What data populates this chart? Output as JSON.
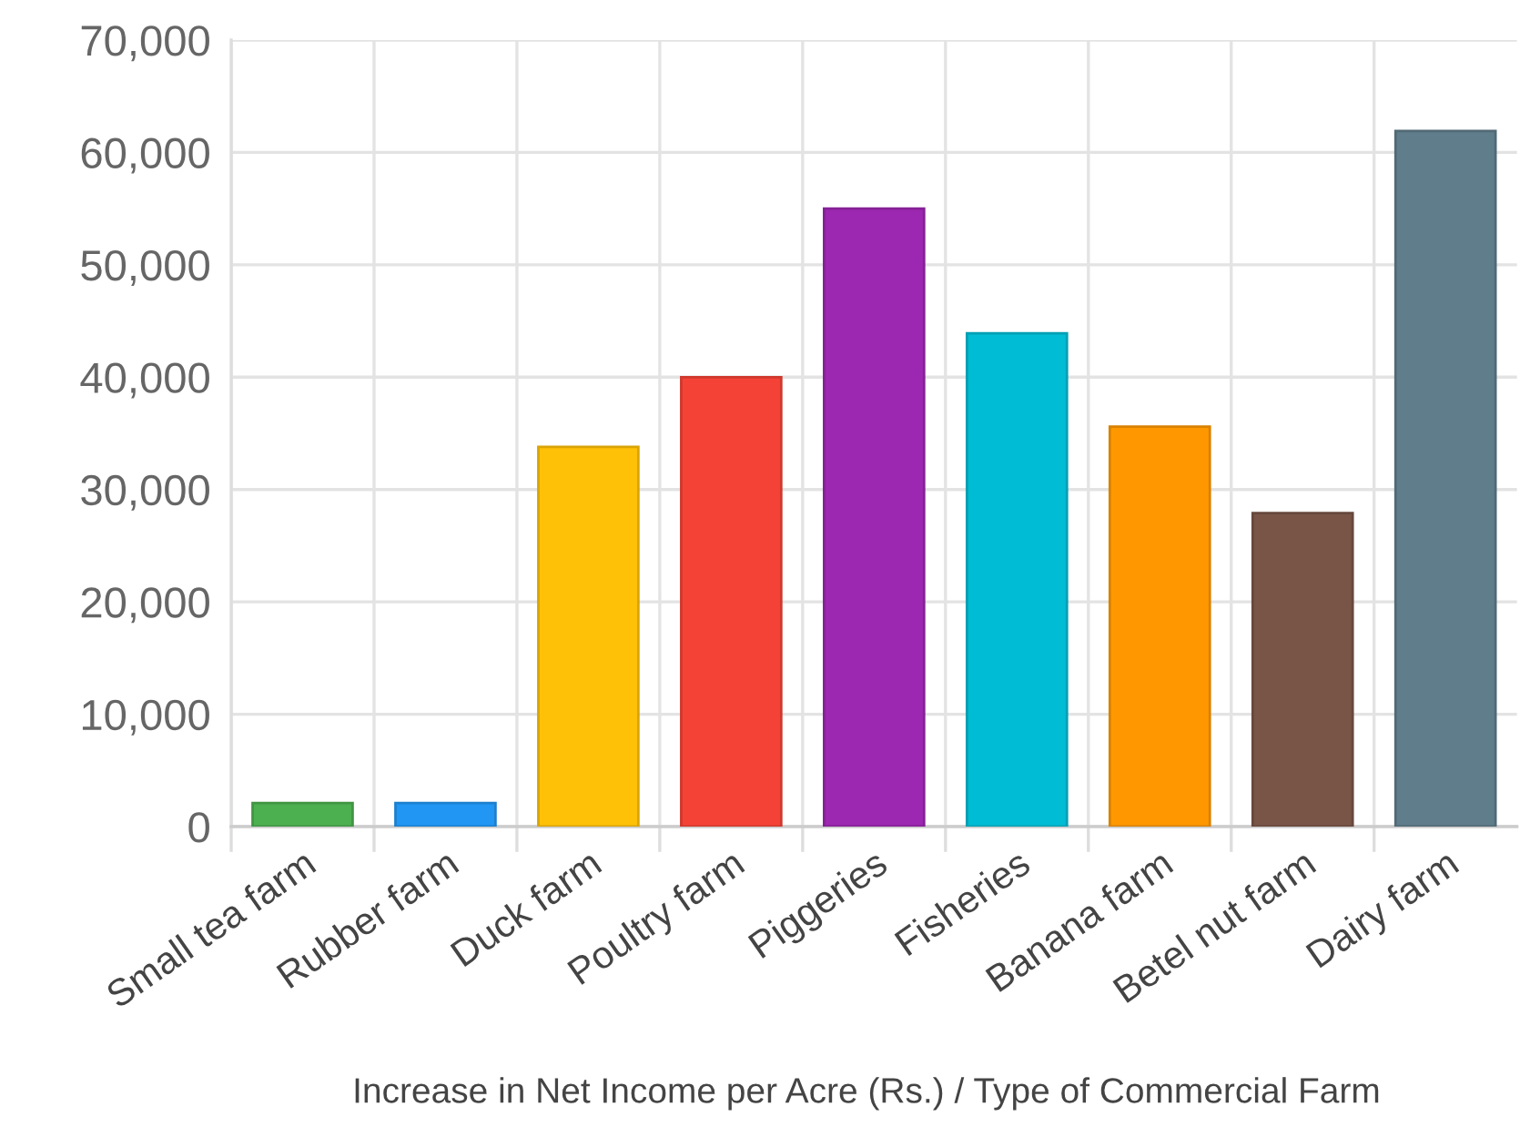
{
  "chart_data": {
    "type": "bar",
    "xlabel": "Increase in Net Income per Acre (Rs.) / Type of Commercial Farm",
    "categories": [
      "Small tea farm",
      "Rubber farm",
      "Duck farm",
      "Poultry farm",
      "Piggeries",
      "Fisheries",
      "Banana farm",
      "Betel nut farm",
      "Dairy farm"
    ],
    "values": [
      2100,
      2100,
      33800,
      40000,
      55000,
      43900,
      35600,
      27900,
      61900
    ],
    "colors": [
      "#4caf50",
      "#2196f3",
      "#ffc107",
      "#f44336",
      "#9c27b0",
      "#00bcd4",
      "#ff9800",
      "#795548",
      "#607d8b"
    ],
    "ylim": [
      0,
      70000
    ],
    "yticks": [
      {
        "value": 0,
        "label": "0"
      },
      {
        "value": 10000,
        "label": "10,000"
      },
      {
        "value": 20000,
        "label": "20,000"
      },
      {
        "value": 30000,
        "label": "30,000"
      },
      {
        "value": 40000,
        "label": "40,000"
      },
      {
        "value": 50000,
        "label": "50,000"
      },
      {
        "value": 60000,
        "label": "60,000"
      },
      {
        "value": 70000,
        "label": "70,000"
      }
    ],
    "grid": true,
    "legend": false
  }
}
